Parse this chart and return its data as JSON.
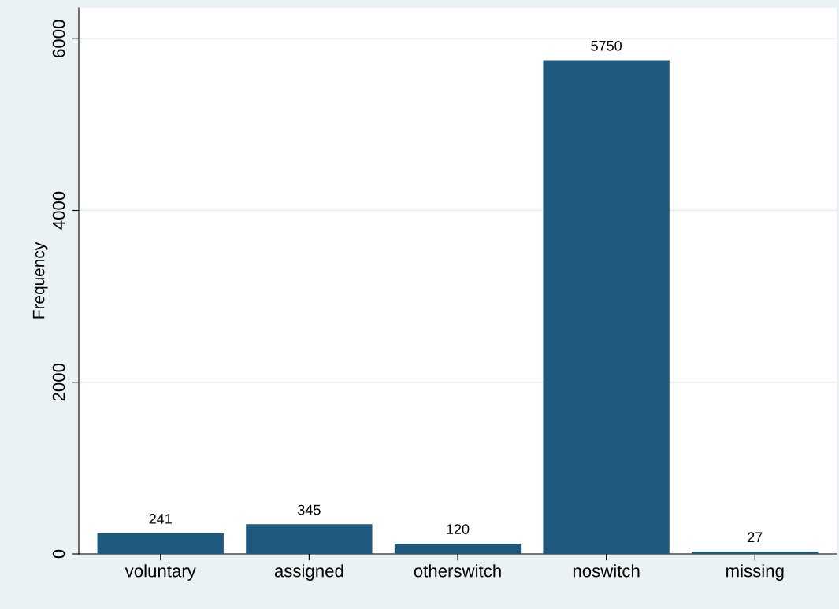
{
  "chart_data": {
    "type": "bar",
    "ylabel": "Frequency",
    "categories": [
      "voluntary",
      "assigned",
      "otherswitch",
      "noswitch",
      "missing"
    ],
    "values": [
      241,
      345,
      120,
      5750,
      27
    ],
    "color": "#1f5a7e",
    "ylim": [
      0,
      6360
    ],
    "yticks": [
      0,
      2000,
      4000,
      6000
    ],
    "grid": "y",
    "data_labels": true
  }
}
